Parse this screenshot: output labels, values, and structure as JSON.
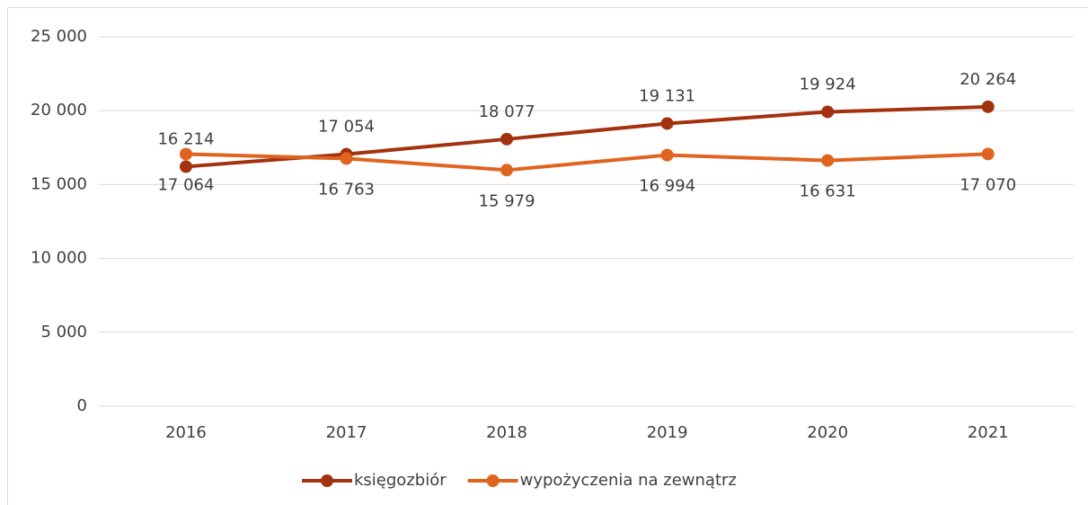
{
  "chart_data": {
    "type": "line",
    "categories": [
      "2016",
      "2017",
      "2018",
      "2019",
      "2020",
      "2021"
    ],
    "series": [
      {
        "name": "księgozbiór",
        "color": "#a3320f",
        "values": [
          16214,
          17054,
          18077,
          19131,
          19924,
          20264
        ],
        "value_labels": [
          "16 214",
          "17 054",
          "18 077",
          "19 131",
          "19 924",
          "20 264"
        ]
      },
      {
        "name": "wypożyczenia na zewnątrz",
        "color": "#e06420",
        "values": [
          17064,
          16763,
          15979,
          16994,
          16631,
          17070
        ],
        "value_labels": [
          "17 064",
          "16 763",
          "15 979",
          "16 994",
          "16 631",
          "17 070"
        ]
      }
    ],
    "ylim": [
      0,
      25000
    ],
    "yticks": [
      0,
      {
        "value": 5000,
        "label": "5 000"
      },
      {
        "value": 10000,
        "label": "10 000"
      },
      {
        "value": 15000,
        "label": "15 000"
      },
      {
        "value": 20000,
        "label": "20 000"
      },
      {
        "value": 25000,
        "label": "25 000"
      }
    ],
    "grid": true,
    "legend": "bottom"
  }
}
